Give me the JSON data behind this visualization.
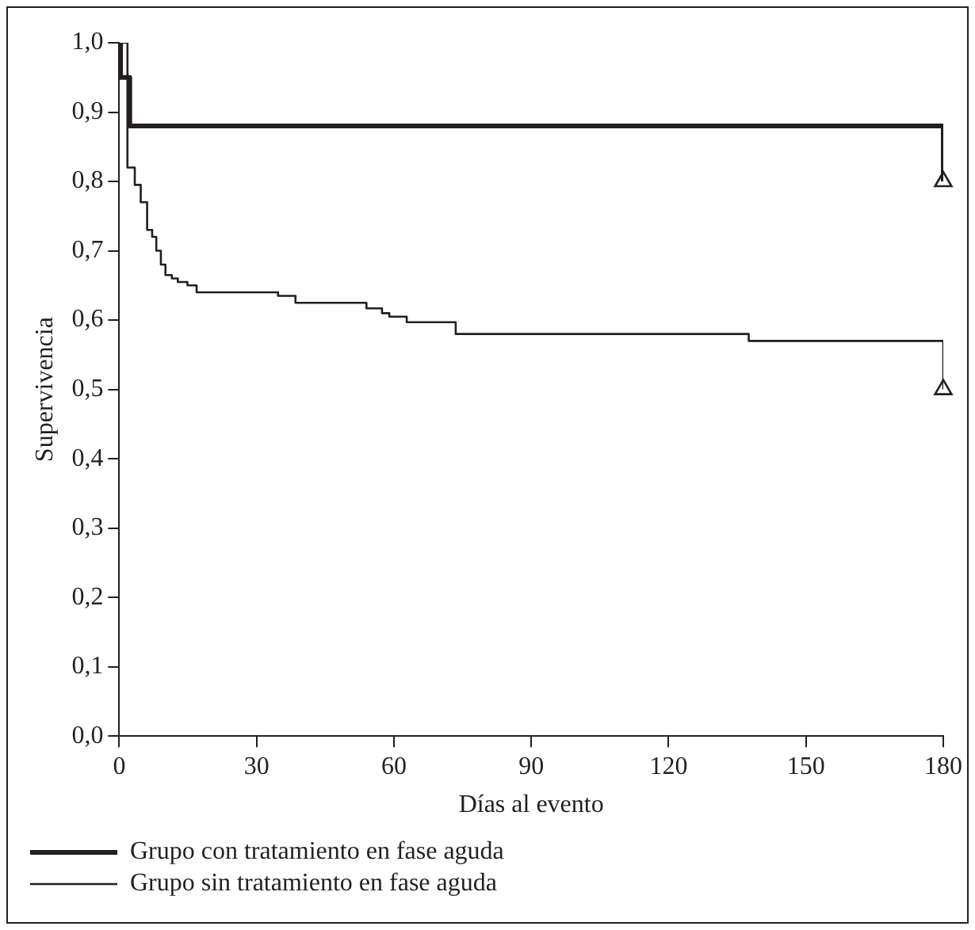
{
  "chart_data": {
    "type": "step",
    "xlabel": "Días al evento",
    "ylabel": "Supervivencia",
    "xlim": [
      0,
      180
    ],
    "xticks": [
      0,
      30,
      60,
      90,
      120,
      150,
      180
    ],
    "ylim": [
      0,
      1
    ],
    "yticks": [
      {
        "value": 0,
        "label": "0,0"
      },
      {
        "value": 0.1,
        "label": "0,1"
      },
      {
        "value": 0.2,
        "label": "0,2"
      },
      {
        "value": 0.3,
        "label": "0,3"
      },
      {
        "value": 0.4,
        "label": "0,4"
      },
      {
        "value": 0.5,
        "label": "0,5"
      },
      {
        "value": 0.6,
        "label": "0,6"
      },
      {
        "value": 0.7,
        "label": "0,7"
      },
      {
        "value": 0.8,
        "label": "0,8"
      },
      {
        "value": 0.9,
        "label": "0,9"
      },
      {
        "value": 1,
        "label": "1,0"
      }
    ],
    "grid": false,
    "legend": "bottom",
    "marker": "none",
    "line_style": "solid",
    "series": [
      {
        "name": "Grupo con tratamiento en fase aguda",
        "color": "#231f20",
        "x": [
          0,
          0.3,
          2.3,
          180
        ],
        "values": [
          1,
          0.95,
          0.88,
          0.8
        ]
      },
      {
        "name": "Grupo sin tratamiento en fase aguda",
        "color": "#231f20",
        "x": [
          0,
          1.8,
          3.4,
          4.7,
          6.1,
          7.2,
          8.1,
          9.1,
          10.1,
          11.5,
          12.8,
          14.9,
          16.9,
          34.7,
          38.5,
          54,
          57.4,
          59,
          62.8,
          73.5,
          137.5,
          180
        ],
        "values": [
          1,
          0.82,
          0.795,
          0.77,
          0.73,
          0.72,
          0.7,
          0.68,
          0.665,
          0.66,
          0.655,
          0.65,
          0.64,
          0.635,
          0.625,
          0.617,
          0.61,
          0.605,
          0.597,
          0.58,
          0.57,
          0.5
        ]
      },
      {
        "type": "scatter",
        "marker": "triangle",
        "color": "#231f20",
        "x": [
          180,
          180
        ],
        "values": [
          0.8,
          0.5
        ]
      }
    ]
  }
}
